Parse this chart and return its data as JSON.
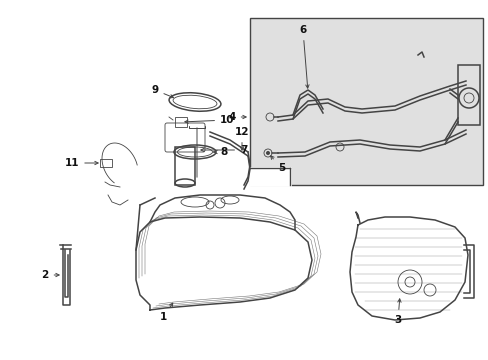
{
  "bg_color": "#ffffff",
  "line_color": "#444444",
  "label_color": "#111111",
  "inset_bg": "#e0e0e0",
  "lw_main": 1.1,
  "lw_thin": 0.6,
  "fontsize": 7.5
}
